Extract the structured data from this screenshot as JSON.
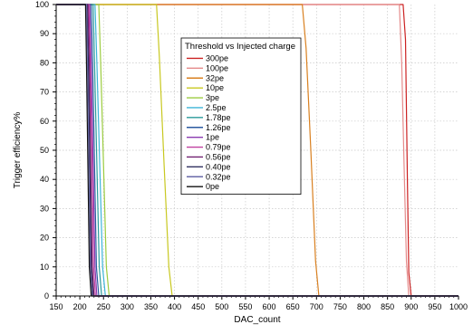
{
  "chart_data": {
    "type": "line",
    "title": "",
    "xlabel": "DAC_count",
    "ylabel": "Trigger efficiency%",
    "xlim": [
      150,
      1000
    ],
    "ylim": [
      0,
      100
    ],
    "x_ticks": [
      "150",
      "200",
      "250",
      "300",
      "350",
      "400",
      "450",
      "500",
      "550",
      "600",
      "650",
      "700",
      "750",
      "800",
      "850",
      "900",
      "950",
      "1000"
    ],
    "y_ticks": [
      "0",
      "10",
      "20",
      "30",
      "40",
      "50",
      "60",
      "70",
      "80",
      "90",
      "100"
    ],
    "grid": true,
    "legend": {
      "title": "Threshold vs Injected charge",
      "placement": "upper-center"
    },
    "series": [
      {
        "name": "300pe",
        "color": "#cc2222",
        "x": [
          150,
          883,
          888,
          892,
          895,
          900,
          1000
        ],
        "y": [
          100,
          100,
          88,
          40,
          8,
          0,
          0
        ]
      },
      {
        "name": "100pe",
        "color": "#e58a8a",
        "x": [
          150,
          875,
          880,
          885,
          890,
          895,
          1000
        ],
        "y": [
          100,
          100,
          80,
          45,
          12,
          0,
          0
        ]
      },
      {
        "name": "32pe",
        "color": "#d98020",
        "x": [
          150,
          670,
          678,
          688,
          698,
          705,
          1000
        ],
        "y": [
          100,
          100,
          85,
          50,
          12,
          0,
          0
        ]
      },
      {
        "name": "10pe",
        "color": "#c8c820",
        "x": [
          150,
          362,
          368,
          378,
          388,
          395,
          1000
        ],
        "y": [
          100,
          100,
          82,
          45,
          10,
          0,
          0
        ]
      },
      {
        "name": "3pe",
        "color": "#9ccc40",
        "x": [
          150,
          240,
          244,
          250,
          256,
          262,
          1000
        ],
        "y": [
          100,
          100,
          80,
          45,
          10,
          0,
          0
        ]
      },
      {
        "name": "2.5pe",
        "color": "#3cb4d8",
        "x": [
          150,
          232,
          236,
          242,
          248,
          254,
          1000
        ],
        "y": [
          100,
          100,
          80,
          45,
          10,
          0,
          0
        ]
      },
      {
        "name": "1.78pe",
        "color": "#2a9a9a",
        "x": [
          150,
          228,
          231,
          236,
          241,
          246,
          1000
        ],
        "y": [
          100,
          100,
          80,
          45,
          10,
          0,
          0
        ]
      },
      {
        "name": "1.26pe",
        "color": "#2a5aa0",
        "x": [
          150,
          224,
          227,
          231,
          235,
          240,
          1000
        ],
        "y": [
          100,
          100,
          80,
          45,
          10,
          0,
          0
        ]
      },
      {
        "name": "1pe",
        "color": "#8a3ab0",
        "x": [
          150,
          221,
          224,
          228,
          232,
          236,
          1000
        ],
        "y": [
          100,
          100,
          80,
          45,
          10,
          0,
          0
        ]
      },
      {
        "name": "0.79pe",
        "color": "#c040a0",
        "x": [
          150,
          219,
          222,
          226,
          229,
          233,
          1000
        ],
        "y": [
          100,
          100,
          80,
          45,
          10,
          0,
          0
        ]
      },
      {
        "name": "0.56pe",
        "color": "#702070",
        "x": [
          150,
          217,
          220,
          223,
          226,
          230,
          1000
        ],
        "y": [
          100,
          100,
          80,
          45,
          10,
          0,
          0
        ]
      },
      {
        "name": "0.40pe",
        "color": "#303060",
        "x": [
          150,
          215,
          218,
          221,
          224,
          228,
          1000
        ],
        "y": [
          100,
          100,
          80,
          45,
          10,
          0,
          0
        ]
      },
      {
        "name": "0.32pe",
        "color": "#6a6aa8",
        "x": [
          150,
          214,
          216,
          219,
          222,
          226,
          1000
        ],
        "y": [
          100,
          100,
          80,
          45,
          10,
          0,
          0
        ]
      },
      {
        "name": "0pe",
        "color": "#111111",
        "x": [
          150,
          212,
          214,
          217,
          220,
          224,
          1000
        ],
        "y": [
          100,
          100,
          80,
          45,
          10,
          0,
          0
        ]
      }
    ]
  }
}
